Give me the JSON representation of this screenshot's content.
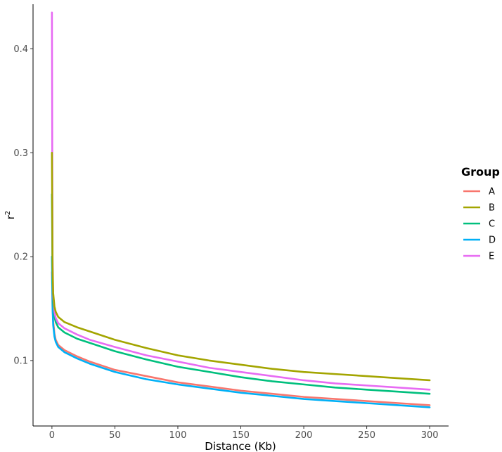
{
  "chart_data": {
    "type": "line",
    "title": "",
    "xlabel": "Distance (Kb)",
    "ylabel": "r",
    "ylabel_superscript": "2",
    "xlim": [
      -15,
      315
    ],
    "ylim": [
      0.037,
      0.443
    ],
    "xticks": [
      0,
      50,
      100,
      150,
      200,
      250,
      300
    ],
    "xtick_labels": [
      "0",
      "50",
      "100",
      "150",
      "200",
      "250",
      "300"
    ],
    "yticks": [
      0.1,
      0.2,
      0.3,
      0.4
    ],
    "ytick_labels": [
      "0.1",
      "0.2",
      "0.3",
      "0.4"
    ],
    "grid": false,
    "legend": {
      "title": "Group",
      "position": "right"
    },
    "series": [
      {
        "name": "A",
        "color": "#F8766D",
        "points": [
          [
            0,
            0.185
          ],
          [
            0.5,
            0.152
          ],
          [
            1,
            0.138
          ],
          [
            2,
            0.126
          ],
          [
            3,
            0.12
          ],
          [
            5,
            0.115
          ],
          [
            10,
            0.11
          ],
          [
            20,
            0.104
          ],
          [
            30,
            0.099
          ],
          [
            50,
            0.091
          ],
          [
            75,
            0.085
          ],
          [
            100,
            0.079
          ],
          [
            125,
            0.075
          ],
          [
            150,
            0.071
          ],
          [
            175,
            0.068
          ],
          [
            200,
            0.065
          ],
          [
            225,
            0.063
          ],
          [
            250,
            0.061
          ],
          [
            275,
            0.059
          ],
          [
            300,
            0.057
          ]
        ]
      },
      {
        "name": "B",
        "color": "#A3A500",
        "points": [
          [
            0,
            0.3
          ],
          [
            0.5,
            0.19
          ],
          [
            1,
            0.165
          ],
          [
            2,
            0.152
          ],
          [
            3,
            0.147
          ],
          [
            5,
            0.142
          ],
          [
            10,
            0.137
          ],
          [
            20,
            0.132
          ],
          [
            30,
            0.128
          ],
          [
            50,
            0.12
          ],
          [
            75,
            0.112
          ],
          [
            100,
            0.105
          ],
          [
            125,
            0.1
          ],
          [
            150,
            0.096
          ],
          [
            175,
            0.092
          ],
          [
            200,
            0.089
          ],
          [
            225,
            0.087
          ],
          [
            250,
            0.085
          ],
          [
            275,
            0.083
          ],
          [
            300,
            0.081
          ]
        ]
      },
      {
        "name": "C",
        "color": "#00BF7D",
        "points": [
          [
            0,
            0.26
          ],
          [
            0.5,
            0.175
          ],
          [
            1,
            0.155
          ],
          [
            2,
            0.142
          ],
          [
            3,
            0.137
          ],
          [
            5,
            0.132
          ],
          [
            10,
            0.127
          ],
          [
            20,
            0.121
          ],
          [
            30,
            0.117
          ],
          [
            50,
            0.109
          ],
          [
            75,
            0.101
          ],
          [
            100,
            0.094
          ],
          [
            125,
            0.089
          ],
          [
            150,
            0.084
          ],
          [
            175,
            0.08
          ],
          [
            200,
            0.077
          ],
          [
            225,
            0.074
          ],
          [
            250,
            0.072
          ],
          [
            275,
            0.07
          ],
          [
            300,
            0.068
          ]
        ]
      },
      {
        "name": "D",
        "color": "#00B0F6",
        "points": [
          [
            0,
            0.2
          ],
          [
            0.5,
            0.15
          ],
          [
            1,
            0.134
          ],
          [
            2,
            0.123
          ],
          [
            3,
            0.118
          ],
          [
            5,
            0.113
          ],
          [
            10,
            0.108
          ],
          [
            20,
            0.102
          ],
          [
            30,
            0.097
          ],
          [
            50,
            0.089
          ],
          [
            75,
            0.082
          ],
          [
            100,
            0.077
          ],
          [
            125,
            0.073
          ],
          [
            150,
            0.069
          ],
          [
            175,
            0.066
          ],
          [
            200,
            0.063
          ],
          [
            225,
            0.061
          ],
          [
            250,
            0.059
          ],
          [
            275,
            0.057
          ],
          [
            300,
            0.055
          ]
        ]
      },
      {
        "name": "E",
        "color": "#E76BF3",
        "points": [
          [
            0,
            0.435
          ],
          [
            0.25,
            0.3
          ],
          [
            0.5,
            0.2
          ],
          [
            1,
            0.162
          ],
          [
            2,
            0.147
          ],
          [
            3,
            0.141
          ],
          [
            5,
            0.136
          ],
          [
            10,
            0.131
          ],
          [
            20,
            0.125
          ],
          [
            30,
            0.12
          ],
          [
            50,
            0.113
          ],
          [
            75,
            0.105
          ],
          [
            100,
            0.099
          ],
          [
            125,
            0.093
          ],
          [
            150,
            0.089
          ],
          [
            175,
            0.085
          ],
          [
            200,
            0.081
          ],
          [
            225,
            0.078
          ],
          [
            250,
            0.076
          ],
          [
            275,
            0.074
          ],
          [
            300,
            0.072
          ]
        ]
      }
    ]
  }
}
